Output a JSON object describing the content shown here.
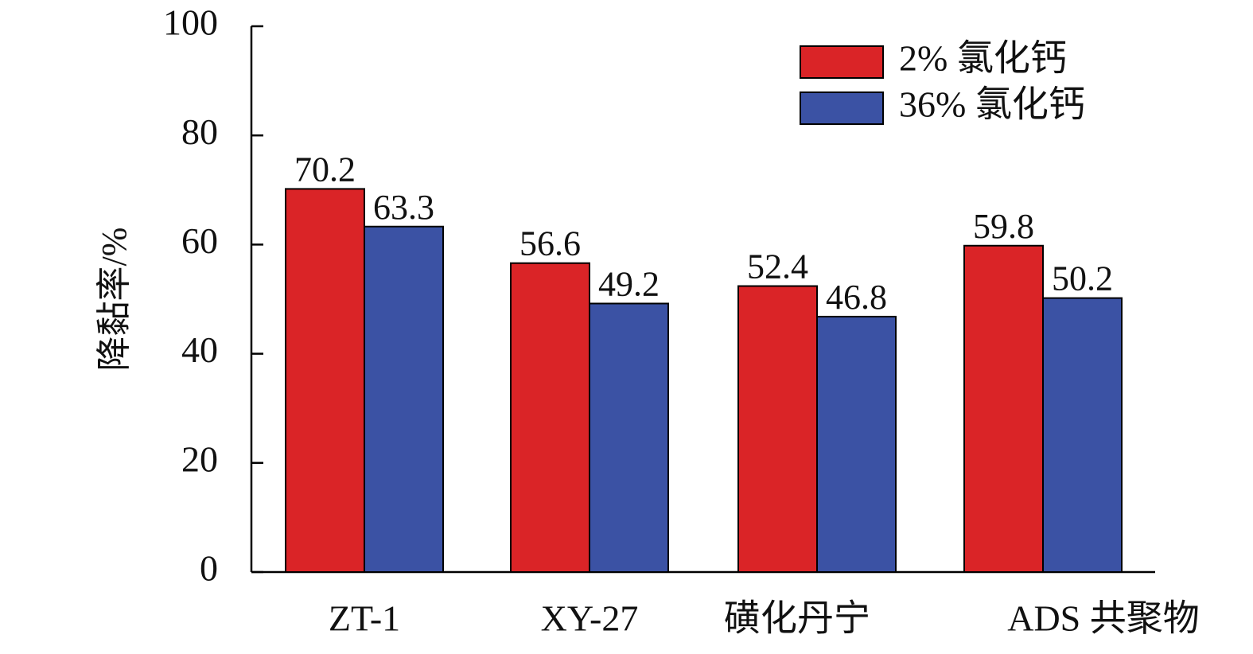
{
  "chart_data": {
    "type": "bar",
    "categories": [
      "ZT-1",
      "XY-27",
      "磺化丹宁",
      "ADS 共聚物"
    ],
    "series": [
      {
        "name": "2% 氯化钙",
        "values": [
          70.2,
          56.6,
          52.4,
          59.8
        ],
        "color": "#da2427"
      },
      {
        "name": "36% 氯化钙",
        "values": [
          63.3,
          49.2,
          46.8,
          50.2
        ],
        "color": "#3b52a4"
      }
    ],
    "title": "",
    "xlabel": "",
    "ylabel": "降黏率/%",
    "ylim": [
      0,
      100
    ],
    "yticks": [
      0,
      20,
      40,
      60,
      80,
      100
    ],
    "grid": false,
    "legend_position": "top-right"
  }
}
